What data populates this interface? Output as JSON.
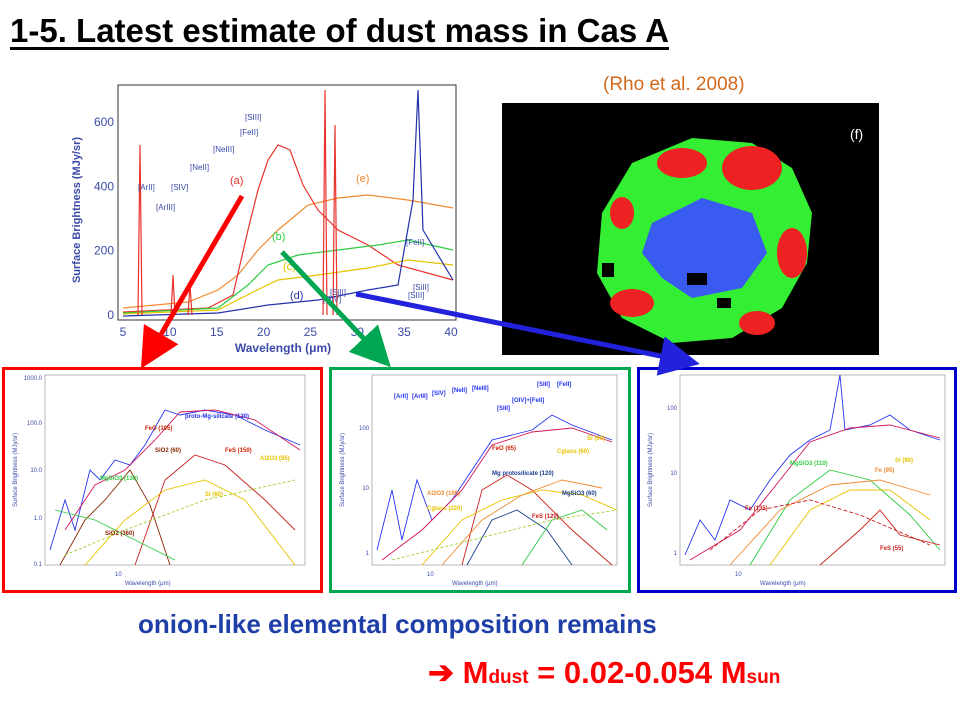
{
  "slide": {
    "title": "1-5. Latest estimate of dust mass in Cas A",
    "citation": "(Rho et al. 2008)",
    "image_label": "(f)",
    "conclusion": "onion-like elemental composition remains",
    "mass_result": {
      "arrow": "➔",
      "symbol": "M",
      "subscript": "dust",
      "equals": " = 0.02-0.054 M",
      "unit_subscript": "sun"
    }
  },
  "main_spectrum": {
    "ylabel": "Surface Brightness (MJy/sr)",
    "xlabel": "Wavelength (μm)",
    "xticks": [
      "5",
      "10",
      "15",
      "20",
      "25",
      "30",
      "35",
      "40"
    ],
    "yticks": [
      "0",
      "200",
      "400",
      "600"
    ],
    "line_labels": [
      "[ArII]",
      "[ArIII]",
      "[SIV]",
      "[NeII]",
      "[NeIII]",
      "[FeII]",
      "[SIII]",
      "[OIV]",
      "[SiII]",
      "[FeII]",
      "[SIII]",
      "[SiII]"
    ],
    "curve_labels": [
      "(a)",
      "(b)",
      "(c)",
      "(d)",
      "(e)"
    ],
    "colors": {
      "a": "#e8332b",
      "b": "#2ecc40",
      "c": "#e6c300",
      "d": "#2233aa",
      "e": "#f28a30"
    }
  },
  "fits": [
    {
      "id": "red",
      "border": "#ff0000",
      "ylabel": "Surface Brightness (MJy/sr)",
      "xlabel": "Wavelength (μm)",
      "yticks": [
        "1000.0",
        "100.0",
        "10.0",
        "1.0",
        "0.1"
      ],
      "xtick": "10",
      "labels": [
        "proto-Mg-silicate (130)",
        "FeO (105)",
        "SiO2 (60)",
        "FeS (150)",
        "Al2O3 (85)",
        "MgSiO3 (130)",
        "Si (60)",
        "SiO2 (360)"
      ]
    },
    {
      "id": "green",
      "border": "#00a651",
      "ylabel": "Surface Brightness (MJy/sr)",
      "xlabel": "Wavelength (μm)",
      "yticks": [
        "100",
        "10",
        "1"
      ],
      "xtick": "10",
      "labels": [
        "[ArII]",
        "[ArIII]",
        "[SIV]",
        "[NeII]",
        "[NeIII]",
        "[SIII]",
        "[OIV]+[FeII]",
        "[SIII]",
        "[FeII]",
        "FeO (65)",
        "Cglass (60)",
        "Si (60)",
        "Mg protosilicate (120)",
        "Al2O3 (100)",
        "Cglass (220)",
        "MgSiO3 (60)",
        "FeS (120)"
      ]
    },
    {
      "id": "blue",
      "border": "#0000cc",
      "ylabel": "Surface Brightness (MJy/sr)",
      "xlabel": "Wavelength (μm)",
      "yticks": [
        "100",
        "10",
        "1"
      ],
      "xtick": "10",
      "labels": [
        "MgSiO3 (110)",
        "Si (90)",
        "Fe (95)",
        "Fe (135)",
        "FeS (55)"
      ]
    }
  ]
}
